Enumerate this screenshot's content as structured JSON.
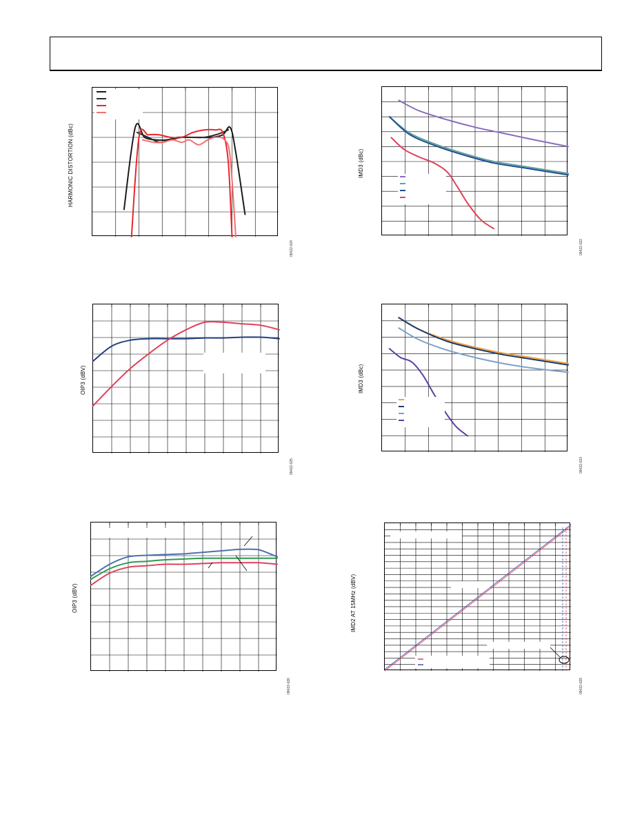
{
  "page": {
    "header": ""
  },
  "charts": [
    {
      "id": "c1",
      "ylabel": "HARMONIC DISTORTION (dBc)",
      "code": "09422-024",
      "grid": [
        7,
        6
      ]
    },
    {
      "id": "c2",
      "ylabel": "IMD3 (dBc)",
      "code": "09422-022",
      "grid": [
        7,
        10
      ]
    },
    {
      "id": "c3",
      "ylabel": "OIP3 (dBV)",
      "code": "09422-025",
      "grid": [
        9,
        9
      ]
    },
    {
      "id": "c4",
      "ylabel": "IMD3 (dBc)",
      "code": "09422-023",
      "grid": [
        7,
        9
      ]
    },
    {
      "id": "c5",
      "ylabel": "OIP3 (dBV)",
      "code": "09422-026",
      "grid": [
        9,
        9
      ]
    },
    {
      "id": "c6",
      "ylabel": "IMD2 AT 15MHz (dBV)",
      "code": "09422-029",
      "grid": [
        11,
        23
      ]
    }
  ],
  "chart_data": [
    {
      "type": "line",
      "ylabel": "HARMONIC DISTORTION (dBc)",
      "xlim": [
        0,
        100
      ],
      "ylim": [
        -70,
        -10
      ],
      "grid": true,
      "legend": "top-left",
      "series": [
        {
          "color": "#1a1a1a",
          "x": [
            17,
            23,
            28,
            34,
            40,
            46,
            52,
            58,
            64,
            70,
            74,
            77,
            82
          ],
          "y": [
            -59,
            -26,
            -30,
            -31,
            -31,
            -30,
            -30,
            -30,
            -30,
            -29,
            -26,
            -36,
            -61
          ]
        },
        {
          "color": "#2a2a2a",
          "x": [
            24,
            30,
            36,
            42,
            48,
            54,
            60,
            66,
            70,
            73
          ],
          "y": [
            -28,
            -30,
            -32,
            -31,
            -30,
            -30,
            -30,
            -29,
            -28,
            -27
          ]
        },
        {
          "color": "#e8262b",
          "x": [
            21,
            25,
            30,
            36,
            42,
            48,
            54,
            60,
            66,
            70,
            73,
            75
          ],
          "y": [
            -70,
            -30,
            -29,
            -29,
            -30,
            -30,
            -28,
            -27,
            -27,
            -28,
            -40,
            -70
          ]
        },
        {
          "color": "#f07070",
          "x": [
            27,
            33,
            38,
            43,
            48,
            52,
            57,
            62,
            66,
            71,
            74,
            77
          ],
          "y": [
            -31,
            -32,
            -32,
            -31,
            -32,
            -31,
            -33,
            -31,
            -30,
            -31,
            -38,
            -70
          ]
        }
      ]
    },
    {
      "type": "line",
      "ylabel": "IMD3 (dBc)",
      "xlim": [
        0,
        100
      ],
      "ylim": [
        -100,
        0
      ],
      "grid": true,
      "legend": "left",
      "series": [
        {
          "color": "#8a6bbf",
          "x": [
            9,
            20,
            35,
            50,
            65,
            80,
            100
          ],
          "y": [
            -9,
            -16,
            -22,
            -27,
            -31,
            -35,
            -40
          ]
        },
        {
          "color": "#5fa0a0",
          "x": [
            4,
            15,
            30,
            45,
            60,
            75,
            90,
            100
          ],
          "y": [
            -20,
            -31,
            -39,
            -45,
            -50,
            -53,
            -56,
            -58
          ]
        },
        {
          "color": "#1f4e8c",
          "x": [
            4,
            15,
            30,
            45,
            60,
            75,
            90,
            100
          ],
          "y": [
            -20,
            -32,
            -40,
            -46,
            -51,
            -54,
            -57,
            -59
          ]
        },
        {
          "color": "#e0405a",
          "x": [
            5,
            12,
            20,
            28,
            35,
            40,
            46,
            53,
            60
          ],
          "y": [
            -34,
            -42,
            -47,
            -51,
            -57,
            -66,
            -78,
            -89,
            -95
          ]
        }
      ]
    },
    {
      "type": "line",
      "ylabel": "OIP3 (dBV)",
      "xlim": [
        0,
        100
      ],
      "ylim": [
        0,
        100
      ],
      "grid": true,
      "series": [
        {
          "color": "#1f3f80",
          "x": [
            0,
            10,
            20,
            30,
            40,
            50,
            60,
            70,
            80,
            90,
            100
          ],
          "y": [
            62,
            72,
            76,
            77,
            77,
            77,
            77.5,
            77.5,
            78,
            78,
            77
          ]
        },
        {
          "color": "#e0405a",
          "x": [
            0,
            10,
            20,
            30,
            40,
            50,
            60,
            70,
            80,
            90,
            100
          ],
          "y": [
            32,
            45,
            57,
            67,
            76,
            83,
            88,
            88,
            87,
            86,
            83
          ]
        }
      ]
    },
    {
      "type": "line",
      "ylabel": "IMD3 (dBc)",
      "xlim": [
        0,
        100
      ],
      "ylim": [
        -100,
        0
      ],
      "grid": true,
      "legend": "left",
      "series": [
        {
          "color": "#f0a040",
          "x": [
            9,
            20,
            35,
            50,
            65,
            80,
            100
          ],
          "y": [
            -9,
            -17,
            -24,
            -29,
            -33,
            -36,
            -40
          ]
        },
        {
          "color": "#1a3a6a",
          "x": [
            9,
            20,
            35,
            50,
            65,
            80,
            100
          ],
          "y": [
            -9,
            -17,
            -25,
            -30,
            -34,
            -37,
            -41
          ]
        },
        {
          "color": "#7aa0c8",
          "x": [
            9,
            20,
            35,
            50,
            65,
            80,
            100
          ],
          "y": [
            -16,
            -24,
            -31,
            -36,
            -40,
            -43,
            -46
          ]
        },
        {
          "color": "#5a3fa0",
          "x": [
            4,
            10,
            16,
            22,
            28,
            34,
            40,
            46
          ],
          "y": [
            -30,
            -36,
            -39,
            -48,
            -61,
            -73,
            -83,
            -89
          ]
        }
      ]
    },
    {
      "type": "line",
      "ylabel": "OIP3 (dBV)",
      "xlim": [
        0,
        100
      ],
      "ylim": [
        0,
        100
      ],
      "grid": true,
      "series": [
        {
          "color": "#4a70b0",
          "x": [
            0,
            10,
            20,
            30,
            40,
            50,
            60,
            70,
            80,
            88,
            92,
            100
          ],
          "y": [
            64,
            72,
            77,
            78,
            78.5,
            79,
            80,
            81,
            82,
            82,
            81,
            77
          ]
        },
        {
          "color": "#2a9a50",
          "x": [
            0,
            10,
            20,
            30,
            40,
            50,
            60,
            70,
            80,
            90,
            100
          ],
          "y": [
            62,
            69,
            73,
            74,
            75,
            75.5,
            76,
            76,
            76,
            76,
            76
          ]
        },
        {
          "color": "#e0405a",
          "x": [
            0,
            10,
            20,
            30,
            40,
            50,
            60,
            70,
            80,
            90,
            100
          ],
          "y": [
            58,
            66,
            70,
            71,
            72,
            72,
            72.5,
            73,
            73,
            73,
            72
          ]
        }
      ]
    },
    {
      "type": "line",
      "ylabel": "IMD2 AT 15MHz (dBV)",
      "xlim": [
        0,
        100
      ],
      "ylim": [
        0,
        100
      ],
      "grid": true,
      "legend": "bottom-left",
      "series": [
        {
          "color": "#e0405a",
          "x": [
            0,
            100
          ],
          "y": [
            0,
            98
          ]
        },
        {
          "color": "#4050b0",
          "x": [
            0,
            100
          ],
          "y": [
            1,
            99
          ]
        }
      ]
    }
  ]
}
